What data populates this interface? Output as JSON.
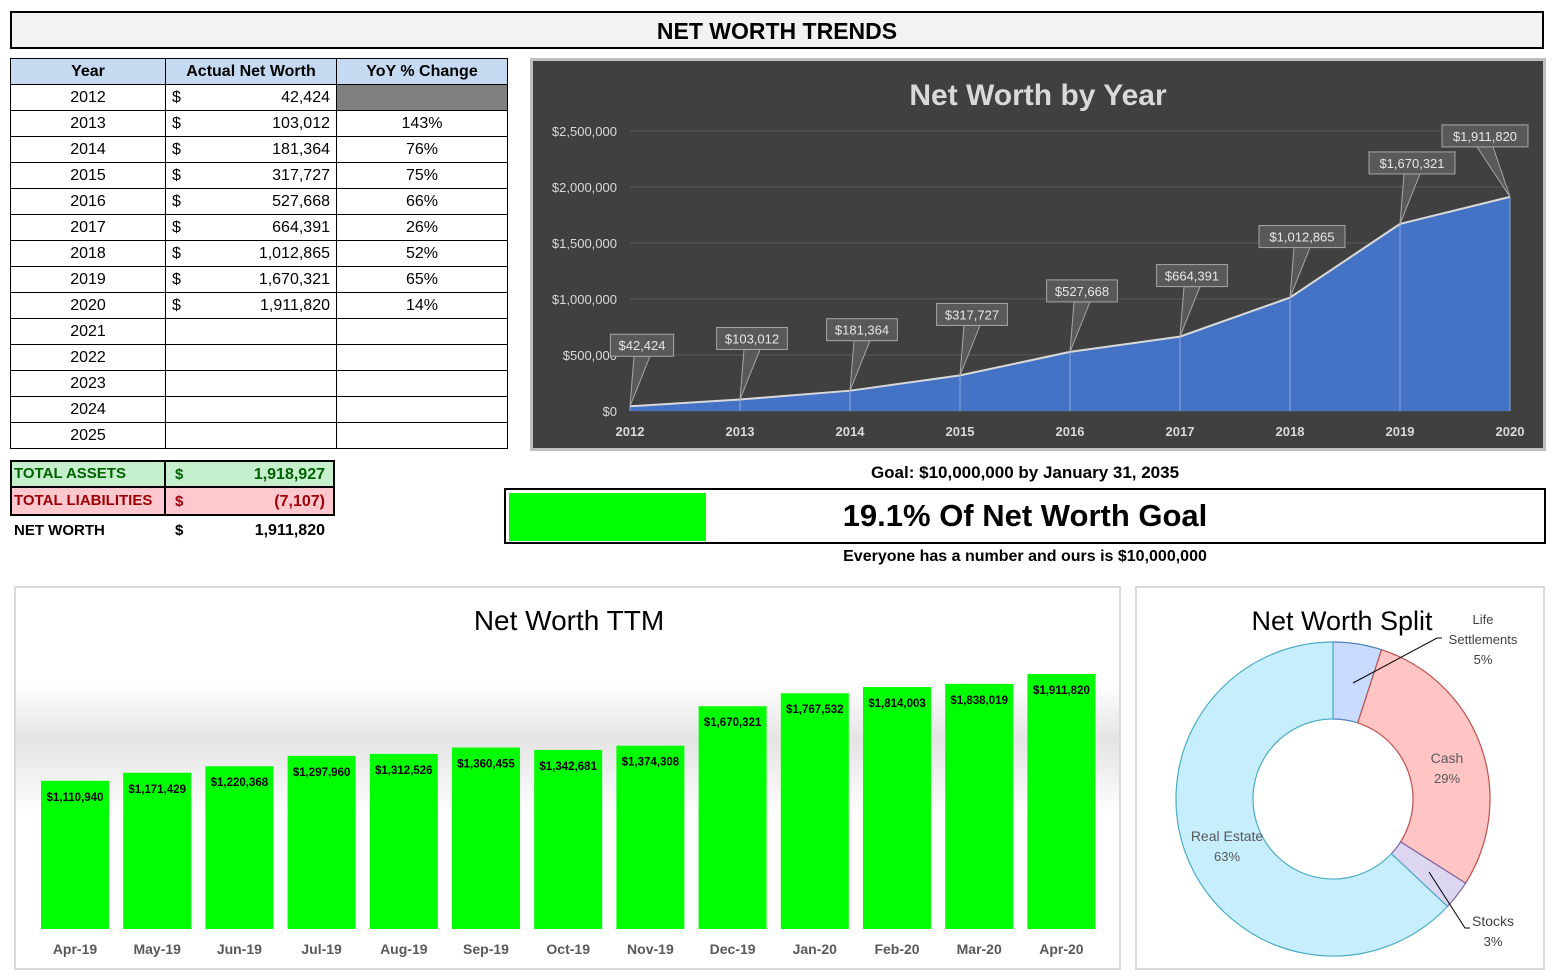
{
  "title": "NET WORTH TRENDS",
  "table": {
    "headers": [
      "Year",
      "Actual Net Worth",
      "YoY % Change"
    ],
    "rows": [
      {
        "year": "2012",
        "nw": "42,424",
        "yoy": ""
      },
      {
        "year": "2013",
        "nw": "103,012",
        "yoy": "143%"
      },
      {
        "year": "2014",
        "nw": "181,364",
        "yoy": "76%"
      },
      {
        "year": "2015",
        "nw": "317,727",
        "yoy": "75%"
      },
      {
        "year": "2016",
        "nw": "527,668",
        "yoy": "66%"
      },
      {
        "year": "2017",
        "nw": "664,391",
        "yoy": "26%"
      },
      {
        "year": "2018",
        "nw": "1,012,865",
        "yoy": "52%"
      },
      {
        "year": "2019",
        "nw": "1,670,321",
        "yoy": "65%"
      },
      {
        "year": "2020",
        "nw": "1,911,820",
        "yoy": "14%"
      },
      {
        "year": "2021",
        "nw": "",
        "yoy": ""
      },
      {
        "year": "2022",
        "nw": "",
        "yoy": ""
      },
      {
        "year": "2023",
        "nw": "",
        "yoy": ""
      },
      {
        "year": "2024",
        "nw": "",
        "yoy": ""
      },
      {
        "year": "2025",
        "nw": "",
        "yoy": ""
      }
    ],
    "currency_symbol": "$"
  },
  "totals": {
    "assets_label": "TOTAL ASSETS",
    "assets_value": "1,918,927",
    "liabilities_label": "TOTAL LIABILITIES",
    "liabilities_value": "(7,107)",
    "net_label": "NET WORTH",
    "net_value": "1,911,820",
    "currency_symbol": "$"
  },
  "goal": {
    "title": "Goal: $10,000,000 by January 31, 2035",
    "progress_text": "19.1% Of Net Worth Goal",
    "progress_fraction": 0.191,
    "subtitle": "Everyone has a number and ours is $10,000,000"
  },
  "colors": {
    "accent_green": "#00ff00",
    "area_blue": "#4472c4",
    "header_blue": "#c5d9f1",
    "assets_bg": "#c6efce",
    "assets_text": "#006100",
    "liab_bg": "#ffc7ce",
    "liab_text": "#9c0006"
  },
  "chart_data": [
    {
      "type": "area",
      "title": "Net Worth by Year",
      "categories": [
        "2012",
        "2013",
        "2014",
        "2015",
        "2016",
        "2017",
        "2018",
        "2019",
        "2020"
      ],
      "values": [
        42424,
        103012,
        181364,
        317727,
        527668,
        664391,
        1012865,
        1670321,
        1911820
      ],
      "data_labels": [
        "$42,424",
        "$103,012",
        "$181,364",
        "$317,727",
        "$527,668",
        "$664,391",
        "$1,012,865",
        "$1,670,321",
        "$1,911,820"
      ],
      "ylim": [
        0,
        2500000
      ],
      "yticks": [
        "$0",
        "$500,000",
        "$1,000,000",
        "$1,500,000",
        "$2,000,000",
        "$2,500,000"
      ],
      "grid": true
    },
    {
      "type": "bar",
      "title": "Net Worth TTM",
      "categories": [
        "Apr-19",
        "May-19",
        "Jun-19",
        "Jul-19",
        "Aug-19",
        "Sep-19",
        "Oct-19",
        "Nov-19",
        "Dec-19",
        "Jan-20",
        "Feb-20",
        "Mar-20",
        "Apr-20"
      ],
      "values": [
        1110940,
        1171429,
        1220368,
        1297960,
        1312526,
        1360455,
        1342681,
        1374308,
        1670321,
        1767532,
        1814003,
        1838019,
        1911820
      ],
      "data_labels": [
        "$1,110,940",
        "$1,171,429",
        "$1,220,368",
        "$1,297,960",
        "$1,312,526",
        "$1,360,455",
        "$1,342,681",
        "$1,374,308",
        "$1,670,321",
        "$1,767,532",
        "$1,814,003",
        "$1,838,019",
        "$1,911,820"
      ],
      "grid": false
    },
    {
      "type": "pie",
      "title": "Net Worth Split",
      "slices": [
        {
          "label": "Life Settlements",
          "percent": 5,
          "color": "#c9dcff"
        },
        {
          "label": "Cash",
          "percent": 29,
          "color": "#ffc5c5"
        },
        {
          "label": "Stocks",
          "percent": 3,
          "color": "#ddd6f0"
        },
        {
          "label": "Real Estate",
          "percent": 63,
          "color": "#c6eefc"
        }
      ]
    }
  ]
}
